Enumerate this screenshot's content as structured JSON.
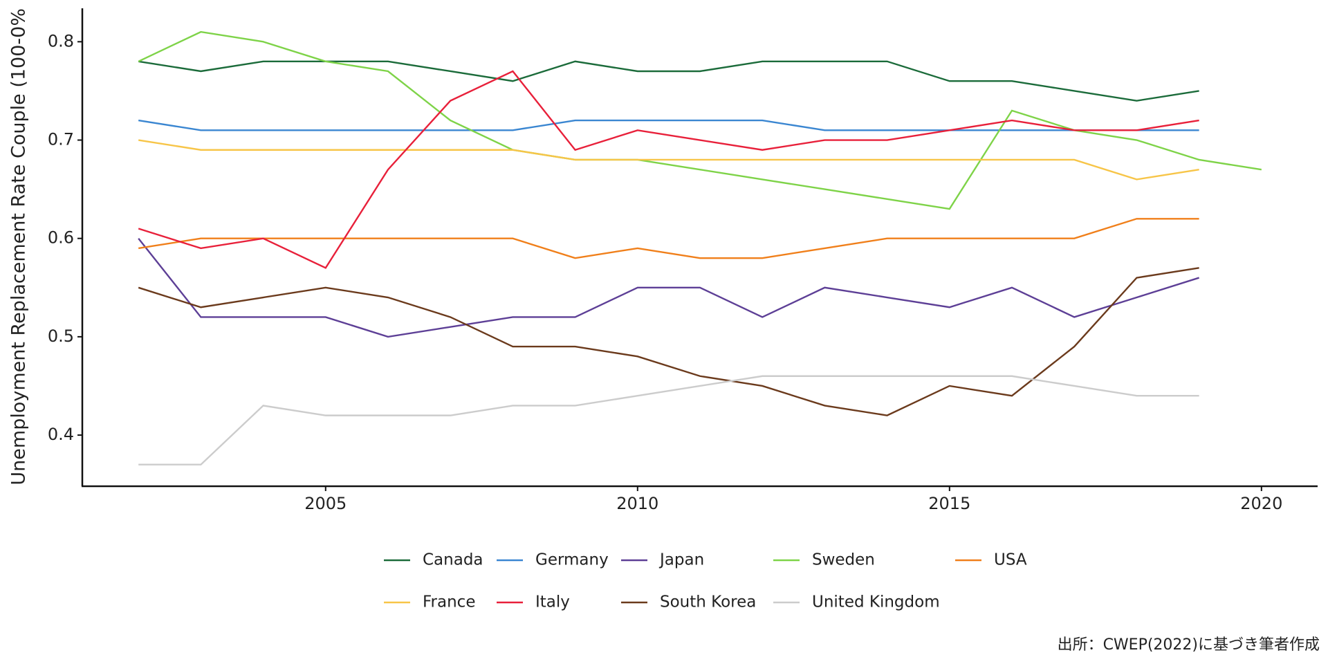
{
  "chart_data": {
    "type": "line",
    "ylabel": "Unemployment Replacement Rate Couple (100-0%",
    "caption": "出所：CWEP(2022)に基づき筆者作成",
    "x": [
      2002,
      2003,
      2004,
      2005,
      2006,
      2007,
      2008,
      2009,
      2010,
      2011,
      2012,
      2013,
      2014,
      2015,
      2016,
      2017,
      2018,
      2019,
      2020
    ],
    "xlim": [
      2001.1,
      2020.9
    ],
    "xticks": [
      2005,
      2010,
      2015,
      2020
    ],
    "ylim": [
      0.348,
      0.834
    ],
    "yticks": [
      0.4,
      0.5,
      0.6,
      0.7,
      0.8
    ],
    "grid": false,
    "legend": "bottom",
    "series": [
      {
        "name": "Canada",
        "color": "#1b6b3a",
        "values": [
          0.78,
          0.77,
          0.78,
          0.78,
          0.78,
          0.77,
          0.76,
          0.78,
          0.77,
          0.77,
          0.78,
          0.78,
          0.78,
          0.76,
          0.76,
          0.75,
          0.74,
          0.75,
          null
        ]
      },
      {
        "name": "Germany",
        "color": "#3a86d1",
        "values": [
          0.72,
          0.71,
          0.71,
          0.71,
          0.71,
          0.71,
          0.71,
          0.72,
          0.72,
          0.72,
          0.72,
          0.71,
          0.71,
          0.71,
          0.71,
          0.71,
          0.71,
          0.71,
          null
        ]
      },
      {
        "name": "Japan",
        "color": "#5d3f96",
        "values": [
          0.6,
          0.52,
          0.52,
          0.52,
          0.5,
          0.51,
          0.52,
          0.52,
          0.55,
          0.55,
          0.52,
          0.55,
          0.54,
          0.53,
          0.55,
          0.52,
          0.54,
          0.56,
          null
        ]
      },
      {
        "name": "Sweden",
        "color": "#7ed348",
        "values": [
          0.78,
          0.81,
          0.8,
          0.78,
          0.77,
          0.72,
          0.69,
          0.68,
          0.68,
          0.67,
          0.66,
          0.65,
          0.64,
          0.63,
          0.73,
          0.71,
          0.7,
          0.68,
          0.67
        ]
      },
      {
        "name": "USA",
        "color": "#f07f1a",
        "values": [
          0.59,
          0.6,
          0.6,
          0.6,
          0.6,
          0.6,
          0.6,
          0.58,
          0.59,
          0.58,
          0.58,
          0.59,
          0.6,
          0.6,
          0.6,
          0.6,
          0.62,
          0.62,
          null
        ]
      },
      {
        "name": "France",
        "color": "#f7c548",
        "values": [
          0.7,
          0.69,
          0.69,
          0.69,
          0.69,
          0.69,
          0.69,
          0.68,
          0.68,
          0.68,
          0.68,
          0.68,
          0.68,
          0.68,
          0.68,
          0.68,
          0.66,
          0.67,
          null
        ]
      },
      {
        "name": "Italy",
        "color": "#e8203a",
        "values": [
          0.61,
          0.59,
          0.6,
          0.57,
          0.67,
          0.74,
          0.77,
          0.69,
          0.71,
          0.7,
          0.69,
          0.7,
          0.7,
          0.71,
          0.72,
          0.71,
          0.71,
          0.72,
          null
        ]
      },
      {
        "name": "South Korea",
        "color": "#6b3a1c",
        "values": [
          0.55,
          0.53,
          0.54,
          0.55,
          0.54,
          0.52,
          0.49,
          0.49,
          0.48,
          0.46,
          0.45,
          0.43,
          0.42,
          0.45,
          0.44,
          0.49,
          0.56,
          0.57,
          null
        ]
      },
      {
        "name": "United Kingdom",
        "color": "#cccccc",
        "values": [
          0.37,
          0.37,
          0.43,
          0.42,
          0.42,
          0.42,
          0.43,
          0.43,
          0.44,
          0.45,
          0.46,
          0.46,
          0.46,
          0.46,
          0.46,
          0.45,
          0.44,
          0.44,
          null
        ]
      }
    ]
  }
}
